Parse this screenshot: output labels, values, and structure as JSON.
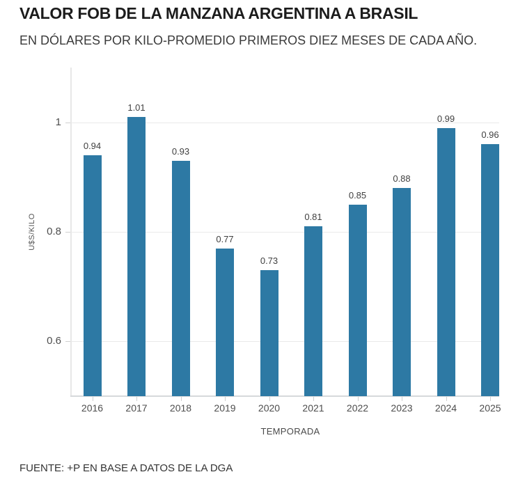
{
  "header": {
    "title": "VALOR FOB DE LA MANZANA ARGENTINA A BRASIL",
    "subtitle": "EN DÓLARES POR KILO-PROMEDIO PRIMEROS DIEZ MESES DE CADA AÑO."
  },
  "footer": {
    "source": "FUENTE: +P EN BASE A DATOS DE LA DGA"
  },
  "chart_data": {
    "type": "bar",
    "title": "VALOR FOB DE LA MANZANA ARGENTINA A BRASIL",
    "subtitle": "EN DÓLARES POR KILO-PROMEDIO PRIMEROS DIEZ MESES DE CADA AÑO.",
    "categories": [
      "2016",
      "2017",
      "2018",
      "2019",
      "2020",
      "2021",
      "2022",
      "2023",
      "2024",
      "2025"
    ],
    "values": [
      0.94,
      1.01,
      0.93,
      0.77,
      0.73,
      0.81,
      0.85,
      0.88,
      0.99,
      0.96
    ],
    "data_labels": [
      "0.94",
      "1.01",
      "0.93",
      "0.77",
      "0.73",
      "0.81",
      "0.85",
      "0.88",
      "0.99",
      "0.96"
    ],
    "xlabel": "TEMPORADA",
    "ylabel": "U$S/KILO",
    "ylim": [
      0.5,
      1.1
    ],
    "yticks": [
      0.6,
      0.8,
      1
    ],
    "ytick_labels": [
      "0.6",
      "0.8",
      "1"
    ],
    "grid": true,
    "legend": false,
    "bar_color": "#2d79a4",
    "background_color": "#ffffff",
    "source": "FUENTE: +P EN BASE A DATOS DE LA DGA"
  }
}
